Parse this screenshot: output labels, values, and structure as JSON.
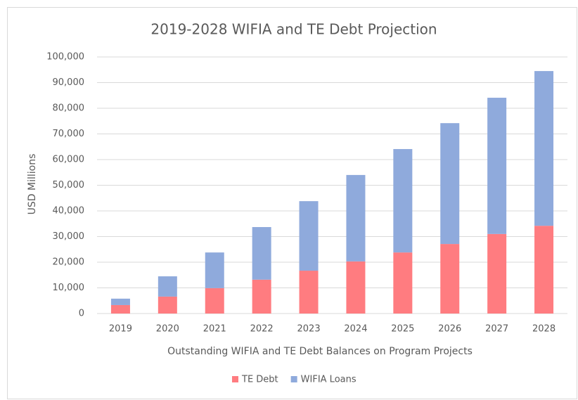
{
  "chart_data": {
    "type": "stacked_bar",
    "title": "2019-2028 WIFIA and TE Debt Projection",
    "x_label": "Outstanding WIFIA and TE Debt Balances on Program Projects",
    "y_label": "USD Millions",
    "categories": [
      "2019",
      "2020",
      "2021",
      "2022",
      "2023",
      "2024",
      "2025",
      "2026",
      "2027",
      "2028"
    ],
    "series": [
      {
        "name": "TE Debt",
        "color": "#ff7c80",
        "values": [
          3300,
          6600,
          9900,
          13200,
          16700,
          20300,
          23800,
          27100,
          31000,
          34200
        ]
      },
      {
        "name": "WIFIA Loans",
        "color": "#8faadc",
        "values": [
          2500,
          7900,
          13900,
          20500,
          27100,
          33700,
          40300,
          47100,
          53100,
          60300
        ]
      }
    ],
    "ylim": [
      0,
      100000
    ],
    "yticks": [
      0,
      {
        "value": 10000,
        "label": "10,000"
      },
      {
        "value": 20000,
        "label": "20,000"
      },
      {
        "value": 30000,
        "label": "30,000"
      },
      {
        "value": 40000,
        "label": "40,000"
      },
      {
        "value": 50000,
        "label": "50,000"
      },
      {
        "value": 60000,
        "label": "60,000"
      },
      {
        "value": 70000,
        "label": "70,000"
      },
      {
        "value": 80000,
        "label": "80,000"
      },
      {
        "value": 90000,
        "label": "90,000"
      },
      {
        "value": 100000,
        "label": "100,000"
      }
    ],
    "grid": true,
    "legend": "bottom"
  }
}
